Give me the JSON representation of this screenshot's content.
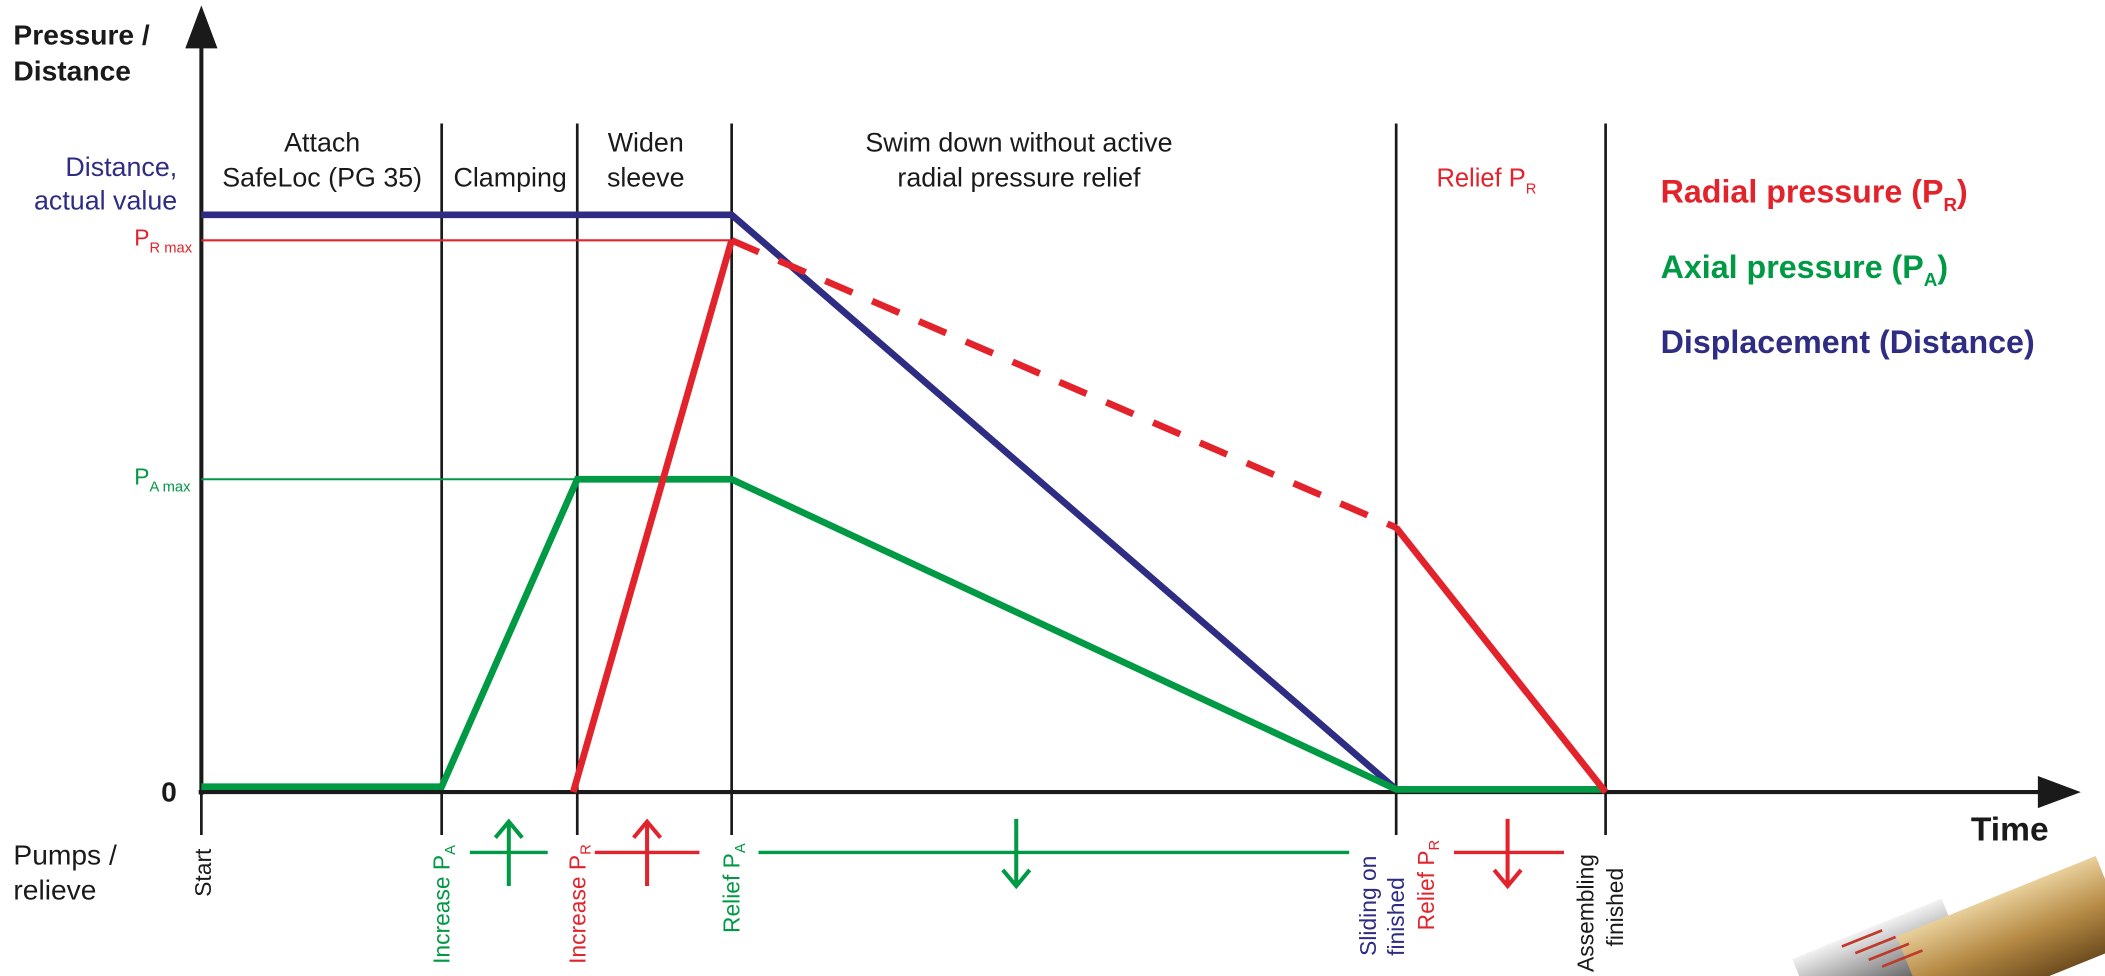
{
  "y_axis": {
    "label": [
      "Pressure /",
      "Distance"
    ],
    "zero": "0"
  },
  "x_axis": {
    "label": "Time"
  },
  "row_label": [
    "Pumps /",
    "relieve"
  ],
  "level_labels": {
    "distance": [
      "Distance,",
      "actual value"
    ],
    "pr_max": {
      "symbol": "P",
      "sub": "R max"
    },
    "pa_max": {
      "symbol": "P",
      "sub": "A max"
    }
  },
  "phases": [
    {
      "lines": [
        "Attach",
        "SafeLoc (PG 35)"
      ]
    },
    {
      "lines": [
        "Clamping"
      ]
    },
    {
      "lines": [
        "Widen",
        "sleeve"
      ]
    },
    {
      "lines": [
        "Swim down without active",
        "radial pressure relief"
      ]
    }
  ],
  "relief_phase": {
    "text": "Relief P",
    "sub": "R"
  },
  "legend": [
    {
      "text": "Radial pressure  (P",
      "sub": "R",
      "end": ")"
    },
    {
      "text": "Axial pressure (P",
      "sub": "A",
      "end": ")"
    },
    {
      "text": "Displacement (Distance)"
    }
  ],
  "events": [
    {
      "text": "Start"
    },
    {
      "text": "Increase P",
      "sub": "A"
    },
    {
      "text": "Increase P",
      "sub": "R"
    },
    {
      "text": "Relief P",
      "sub": "A"
    },
    {
      "lines": [
        "Sliding on",
        "finished"
      ]
    },
    {
      "text": "Relief P",
      "sub": "R"
    },
    {
      "lines": [
        "Assembling",
        "finished"
      ]
    }
  ]
}
